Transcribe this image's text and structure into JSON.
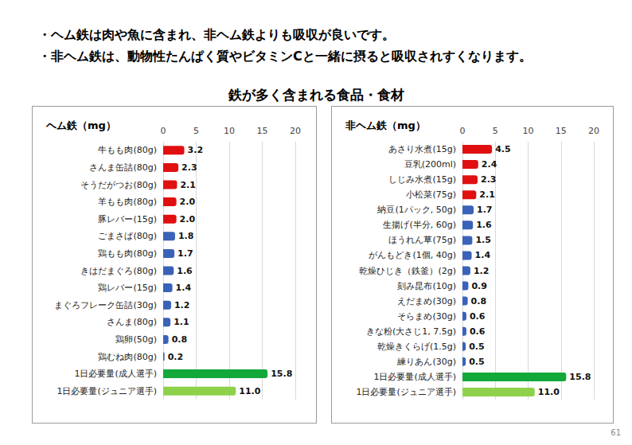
{
  "header": [
    "・ヘム鉄は肉や魚に含まれ、非ヘム鉄よりも吸収が良いです。",
    "・非ヘム鉄は、動物性たんぱく質やビタミンCと一緒に摂ると吸収されすくなります。"
  ],
  "title": "鉄が多く含まれる食品・食材",
  "page_number": "61",
  "chart_data": [
    {
      "type": "bar",
      "title": "ヘム鉄（mg）",
      "orientation": "horizontal",
      "categories": [
        "牛もも肉(80g)",
        "さんま缶詰(80g)",
        "そうだがつお(80g)",
        "羊もも肉(80g)",
        "豚レバー(15g)",
        "ごまさば(80g)",
        "鶏もも肉(80g)",
        "きはだまぐろ(80g)",
        "鶏レバー(15g)",
        "まぐろフレーク缶詰(30g)",
        "さんま(80g)",
        "鶏卵(50g)",
        "鶏むね肉(80g)",
        "1日必要量(成人選手)",
        "1日必要量(ジュニア選手)"
      ],
      "values": [
        3.2,
        2.3,
        2.1,
        2.0,
        2.0,
        1.8,
        1.7,
        1.6,
        1.4,
        1.2,
        1.1,
        0.8,
        0.2,
        15.8,
        11.0
      ],
      "value_labels": [
        "3.2",
        "2.3",
        "2.1",
        "2.0",
        "2.0",
        "1.8",
        "1.7",
        "1.6",
        "1.4",
        "1.2",
        "1.1",
        "0.8",
        "0.2",
        "15.8",
        "11.0"
      ],
      "colors": [
        "#e01010",
        "#e01010",
        "#e01010",
        "#e01010",
        "#e01010",
        "#3a62b8",
        "#3a62b8",
        "#3a62b8",
        "#3a62b8",
        "#3a62b8",
        "#3a62b8",
        "#3a62b8",
        "#3a62b8",
        "#13a83a",
        "#8dd24a"
      ],
      "xlim": [
        0,
        20
      ],
      "xticks": [
        0,
        5,
        10,
        15,
        20
      ],
      "grid": true,
      "data_labels": true
    },
    {
      "type": "bar",
      "title": "非ヘム鉄（mg）",
      "orientation": "horizontal",
      "categories": [
        "あさり水煮(15g)",
        "豆乳(200ml)",
        "しじみ水煮(15g)",
        "小松菜(75g)",
        "納豆(1パック, 50g)",
        "生揚げ(半分, 60g)",
        "ほうれん草(75g)",
        "がんもどき(1個, 40g)",
        "乾燥ひじき（鉄釜）(2g)",
        "刻み昆布(10g)",
        "えだまめ(30g)",
        "そらまめ(30g)",
        "きな粉(大さじ1, 7.5g)",
        "乾燥きくらげ(1.5g)",
        "練りあん(30g)",
        "1日必要量(成人選手)",
        "1日必要量(ジュニア選手)"
      ],
      "values": [
        4.5,
        2.4,
        2.3,
        2.1,
        1.7,
        1.6,
        1.5,
        1.4,
        1.2,
        0.9,
        0.8,
        0.6,
        0.6,
        0.5,
        0.5,
        15.8,
        11.0
      ],
      "value_labels": [
        "4.5",
        "2.4",
        "2.3",
        "2.1",
        "1.7",
        "1.6",
        "1.5",
        "1.4",
        "1.2",
        "0.9",
        "0.8",
        "0.6",
        "0.6",
        "0.5",
        "0.5",
        "15.8",
        "11.0"
      ],
      "colors": [
        "#e01010",
        "#e01010",
        "#e01010",
        "#e01010",
        "#3a62b8",
        "#3a62b8",
        "#3a62b8",
        "#3a62b8",
        "#3a62b8",
        "#3a62b8",
        "#3a62b8",
        "#3a62b8",
        "#3a62b8",
        "#3a62b8",
        "#3a62b8",
        "#13a83a",
        "#8dd24a"
      ],
      "xlim": [
        0,
        20
      ],
      "xticks": [
        0,
        5,
        10,
        15,
        20
      ],
      "grid": true,
      "data_labels": true
    }
  ]
}
